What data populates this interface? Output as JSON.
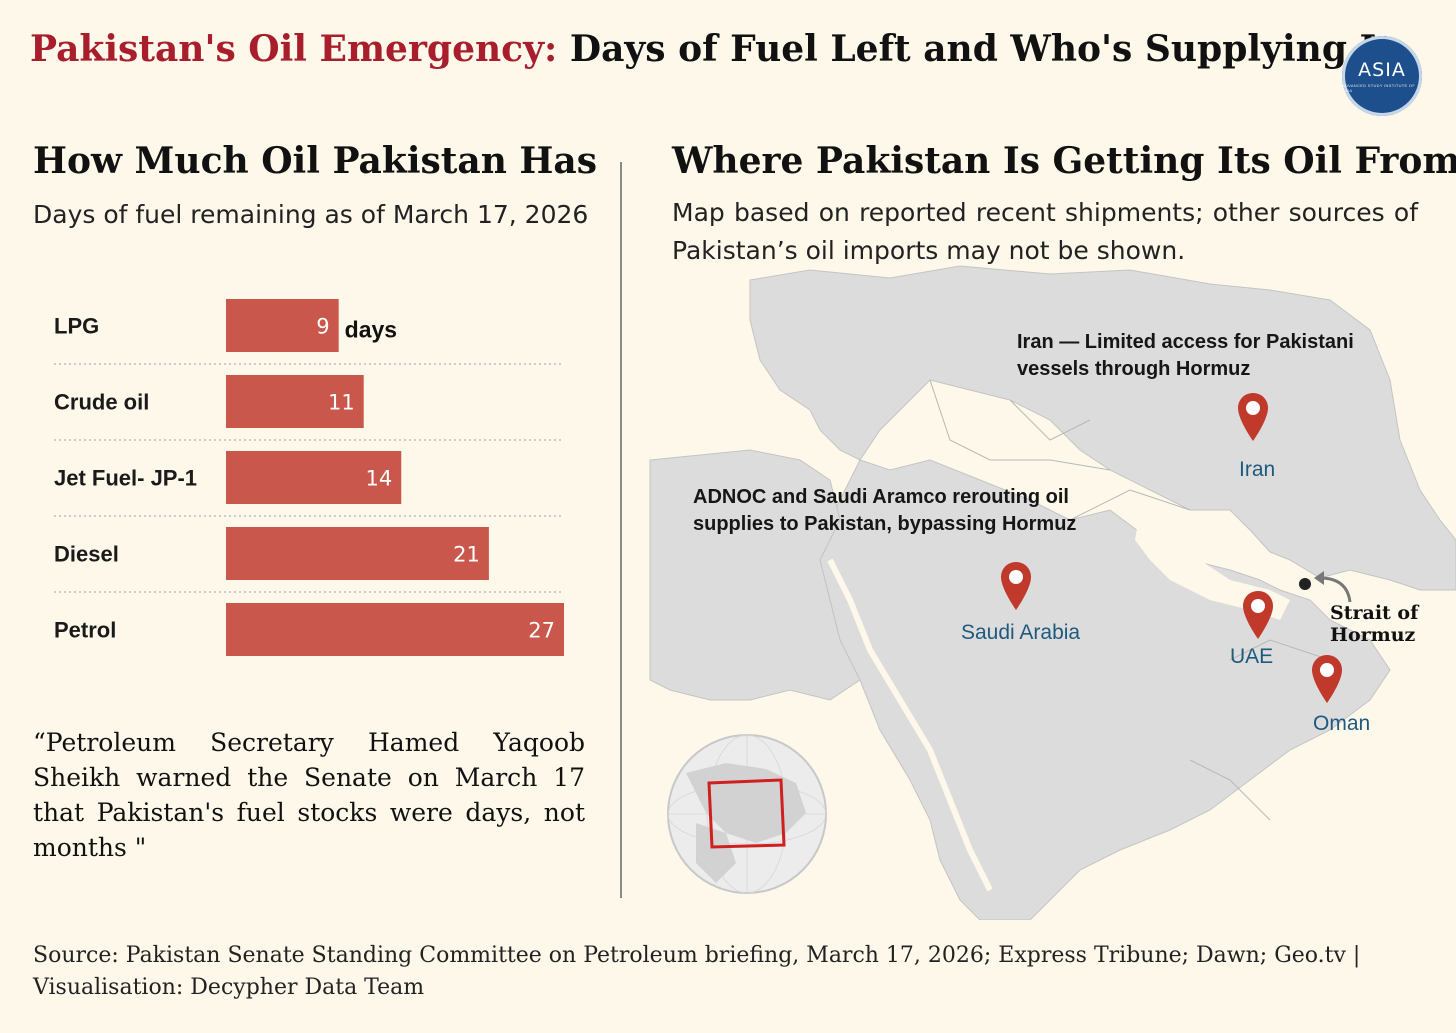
{
  "header": {
    "title_accent": "Pakistan's Oil Emergency:",
    "title_rest": "Days of Fuel Left and Who's Supplying It",
    "logo_text": "ASIA",
    "logo_subtext": "ADVANCED STUDY INSTITUTE OF ASIA"
  },
  "left_panel": {
    "title": "How Much Oil Pakistan Has",
    "subtitle": "Days of fuel remaining as of March 17, 2026",
    "quote": "“Petroleum Secretary Hamed Yaqoob Sheikh warned the Senate on March 17 that Pakistan's fuel stocks were days, not months \""
  },
  "chart_data": {
    "type": "bar",
    "orientation": "horizontal",
    "title": "How Much Oil Pakistan Has",
    "subtitle": "Days of fuel remaining as of March 17, 2026",
    "categories": [
      "LPG",
      "Crude oil",
      "Jet Fuel- JP-1",
      "Diesel",
      "Petrol"
    ],
    "values": [
      9,
      11,
      14,
      21,
      27
    ],
    "unit_label": "days",
    "xlim": [
      0,
      27
    ],
    "bar_color": "#c9574b",
    "grid": false
  },
  "right_panel": {
    "title": "Where Pakistan Is Getting Its Oil From",
    "subtitle": "Map based on reported recent shipments; other sources of Pakistan’s oil imports may not be shown.",
    "note_iran": "Iran — Limited access for Pakistani vessels through Hormuz",
    "note_adnoc": "ADNOC and Saudi Aramco rerouting oil supplies to Pakistan, bypassing Hormuz",
    "locations": {
      "iran": "Iran",
      "saudi": "Saudi Arabia",
      "uae": "UAE",
      "oman": "Oman"
    },
    "strait_label": "Strait of Hormuz",
    "pin_color": "#c0392b",
    "land_color": "#dcdcdc"
  },
  "footer": {
    "source": "Source: Pakistan Senate Standing Committee on Petroleum briefing, March 17, 2026; Express Tribune; Dawn; Geo.tv  | Visualisation: Decypher Data Team"
  }
}
